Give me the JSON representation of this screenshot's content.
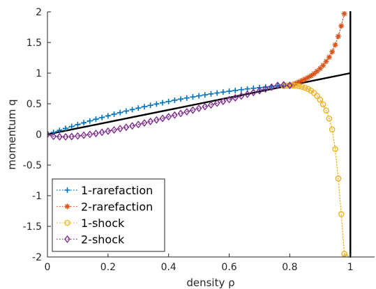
{
  "chart_data": {
    "type": "line",
    "xlabel": "density ρ",
    "ylabel": "momentum q",
    "xlim": [
      0,
      1.08
    ],
    "ylim": [
      -2,
      2
    ],
    "xticks": [
      0,
      0.2,
      0.4,
      0.6,
      0.8,
      1
    ],
    "xtick_labels": [
      "0",
      "0.2",
      "0.4",
      "0.6",
      "0.8",
      "1"
    ],
    "yticks": [
      -2,
      -1.5,
      -1,
      -0.5,
      0,
      0.5,
      1,
      1.5,
      2
    ],
    "ytick_labels": [
      "-2",
      "-1.5",
      "-1",
      "-0.5",
      "0",
      "0.5",
      "1",
      "1.5",
      "2"
    ],
    "grid": false,
    "legend_position": "bottom-left",
    "series": [
      {
        "name": "1-rarefaction",
        "color": "#0072BD",
        "marker": "plus",
        "x": [
          0,
          0.02,
          0.04,
          0.06,
          0.08,
          0.1,
          0.12,
          0.14,
          0.16,
          0.18,
          0.2,
          0.22,
          0.24,
          0.26,
          0.28,
          0.3,
          0.32,
          0.34,
          0.36,
          0.38,
          0.4,
          0.42,
          0.44,
          0.46,
          0.48,
          0.5,
          0.52,
          0.54,
          0.56,
          0.58,
          0.6,
          0.62,
          0.64,
          0.66,
          0.68,
          0.7,
          0.72,
          0.74,
          0.76,
          0.78,
          0.8
        ],
        "y": [
          0,
          0.033,
          0.066,
          0.098,
          0.129,
          0.16,
          0.19,
          0.219,
          0.248,
          0.276,
          0.303,
          0.33,
          0.356,
          0.381,
          0.405,
          0.429,
          0.452,
          0.474,
          0.496,
          0.517,
          0.537,
          0.557,
          0.576,
          0.594,
          0.612,
          0.629,
          0.645,
          0.661,
          0.676,
          0.69,
          0.704,
          0.717,
          0.73,
          0.742,
          0.753,
          0.764,
          0.774,
          0.784,
          0.793,
          0.801,
          0.809
        ]
      },
      {
        "name": "2-rarefaction",
        "color": "#D95319",
        "marker": "asterisk",
        "x": [
          0.8,
          0.81,
          0.82,
          0.83,
          0.84,
          0.85,
          0.86,
          0.87,
          0.88,
          0.89,
          0.9,
          0.91,
          0.92,
          0.93,
          0.94,
          0.95,
          0.96,
          0.97,
          0.98
        ],
        "y": [
          0.8,
          0.815,
          0.835,
          0.856,
          0.878,
          0.902,
          0.928,
          0.956,
          0.99,
          1.03,
          1.075,
          1.125,
          1.19,
          1.26,
          1.35,
          1.46,
          1.6,
          1.77,
          1.97
        ]
      },
      {
        "name": "1-shock",
        "color": "#EDB120",
        "marker": "circle",
        "x": [
          0.78,
          0.79,
          0.8,
          0.81,
          0.82,
          0.83,
          0.84,
          0.85,
          0.86,
          0.87,
          0.88,
          0.89,
          0.9,
          0.91,
          0.92,
          0.93,
          0.94,
          0.95,
          0.96,
          0.97,
          0.98,
          0.985
        ],
        "y": [
          0.79,
          0.795,
          0.8,
          0.798,
          0.794,
          0.787,
          0.777,
          0.762,
          0.742,
          0.714,
          0.677,
          0.628,
          0.567,
          0.49,
          0.39,
          0.26,
          0.08,
          -0.24,
          -0.72,
          -1.3,
          -1.95,
          -2
        ]
      },
      {
        "name": "2-shock",
        "color": "#7E2F8E",
        "marker": "diamond",
        "x": [
          0,
          0.02,
          0.04,
          0.06,
          0.08,
          0.1,
          0.12,
          0.14,
          0.16,
          0.18,
          0.2,
          0.22,
          0.24,
          0.26,
          0.28,
          0.3,
          0.32,
          0.34,
          0.36,
          0.38,
          0.4,
          0.42,
          0.44,
          0.46,
          0.48,
          0.5,
          0.52,
          0.54,
          0.56,
          0.58,
          0.6,
          0.62,
          0.64,
          0.66,
          0.68,
          0.7,
          0.72,
          0.74,
          0.76,
          0.78,
          0.8
        ],
        "y": [
          0,
          -0.031,
          -0.039,
          -0.04,
          -0.035,
          -0.026,
          -0.014,
          0,
          0.016,
          0.034,
          0.053,
          0.073,
          0.094,
          0.116,
          0.139,
          0.162,
          0.186,
          0.211,
          0.236,
          0.262,
          0.288,
          0.315,
          0.342,
          0.369,
          0.397,
          0.425,
          0.453,
          0.481,
          0.51,
          0.539,
          0.568,
          0.597,
          0.626,
          0.655,
          0.684,
          0.713,
          0.742,
          0.771,
          0.8,
          0.81,
          0.8
        ]
      },
      {
        "color": "#000000",
        "marker": "none",
        "x": [
          0,
          0.1,
          0.2,
          0.3,
          0.4,
          0.5,
          0.6,
          0.7,
          0.8,
          0.9,
          1
        ],
        "y": [
          0,
          0.1,
          0.2,
          0.3,
          0.4,
          0.5,
          0.6,
          0.7,
          0.8,
          0.9,
          1
        ]
      },
      {
        "color": "#000000",
        "marker": "none",
        "x": [
          1,
          1
        ],
        "y": [
          -2,
          2
        ]
      }
    ]
  }
}
